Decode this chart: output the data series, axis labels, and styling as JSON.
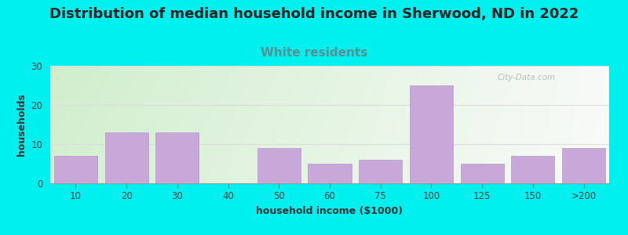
{
  "title": "Distribution of median household income in Sherwood, ND in 2022",
  "subtitle": "White residents",
  "xlabel": "household income ($1000)",
  "ylabel": "households",
  "categories": [
    "10",
    "20",
    "30",
    "40",
    "50",
    "60",
    "75",
    "100",
    "125",
    "150",
    ">200"
  ],
  "values": [
    7,
    13,
    13,
    0,
    9,
    5,
    6,
    25,
    5,
    7,
    9
  ],
  "bar_color": "#c8a8d8",
  "bar_edge_color": "#b898c8",
  "background_color": "#00efef",
  "title_fontsize": 13,
  "subtitle_fontsize": 11,
  "subtitle_color": "#5a9090",
  "axis_label_fontsize": 9,
  "tick_fontsize": 8.5,
  "ylim": [
    0,
    30
  ],
  "yticks": [
    0,
    10,
    20,
    30
  ],
  "watermark": "City-Data.com",
  "gradient_left": "#d0eecc",
  "gradient_right": "#f8faf8"
}
